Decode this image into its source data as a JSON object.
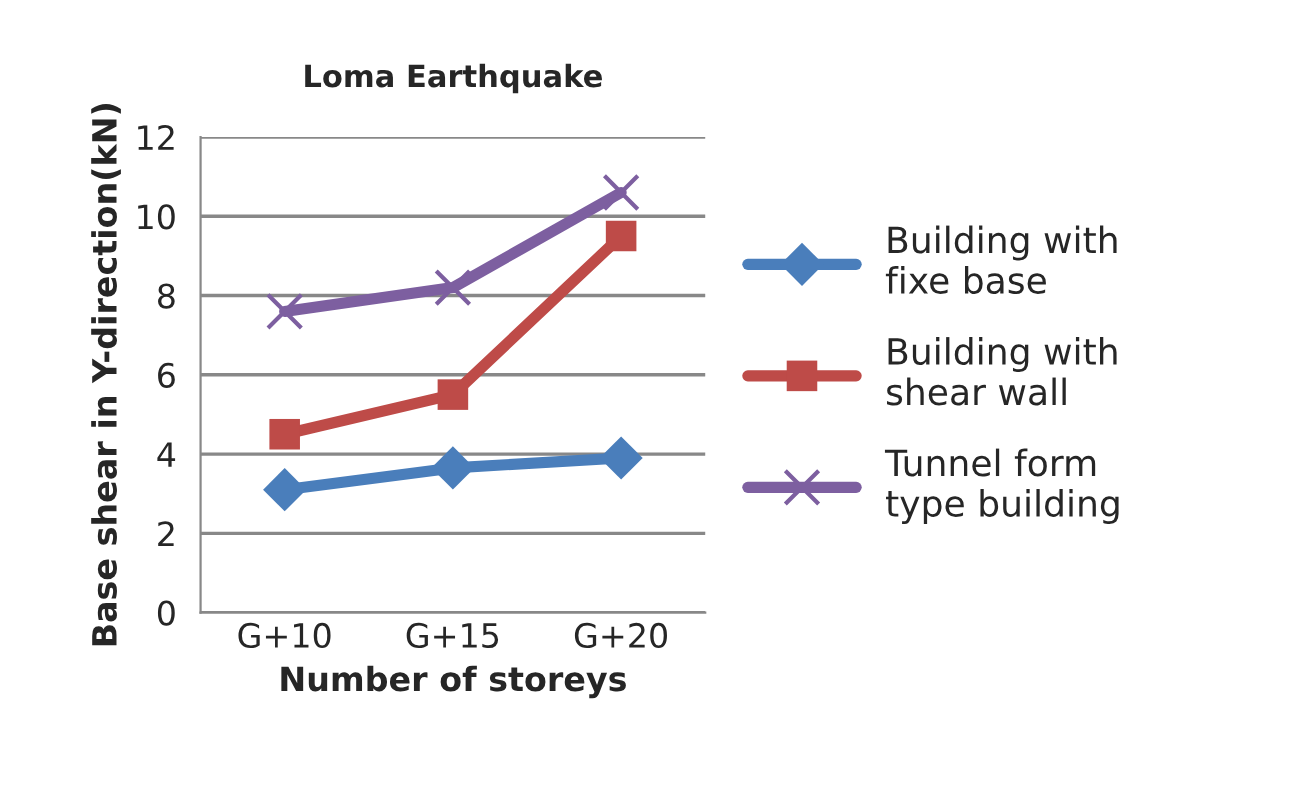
{
  "chart_data": {
    "type": "line",
    "title": "Loma Earthquake",
    "xlabel": "Number of storeys",
    "ylabel": "Base shear in Y-direction(kN)",
    "categories": [
      "G+10",
      "G+15",
      "G+20"
    ],
    "series": [
      {
        "name": "Building with\nfixe base",
        "color": "#4a7ebb",
        "marker": "diamond",
        "values": [
          3.1,
          3.65,
          3.9
        ]
      },
      {
        "name": "Building with\nshear wall",
        "color": "#be4b48",
        "marker": "square",
        "values": [
          4.5,
          5.5,
          9.5
        ]
      },
      {
        "name": "Tunnel form\ntype building",
        "color": "#7d5fa0",
        "marker": "cross",
        "values": [
          7.6,
          8.2,
          10.6
        ]
      }
    ],
    "ylim": [
      0,
      12
    ],
    "yticks": [
      0,
      2,
      4,
      6,
      8,
      10,
      12
    ],
    "grid": "y",
    "legend": "right",
    "line_style": "solid"
  }
}
